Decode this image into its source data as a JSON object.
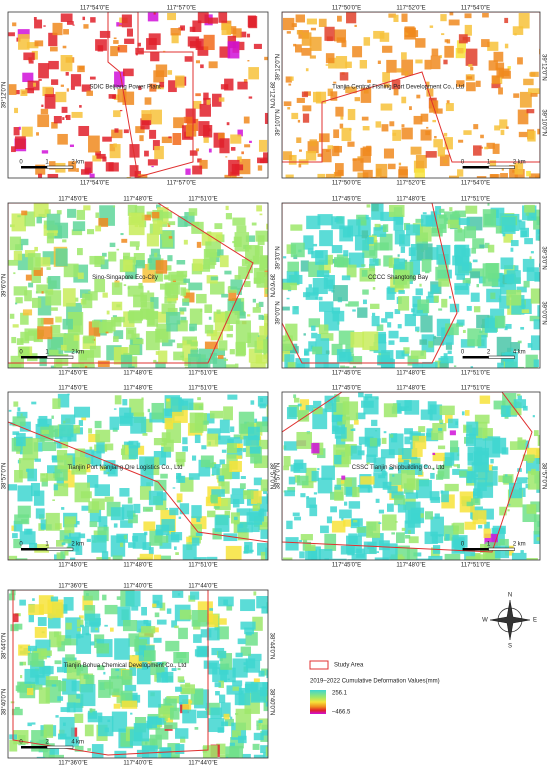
{
  "panels": [
    {
      "x_labels": [
        "117°54'0\"E",
        "117°57'0\"E"
      ],
      "y_labels": [
        "39°12'0\"N"
      ],
      "place": "SDIC Beijiang Power Plant",
      "scale": [
        "0",
        "1",
        "2",
        "km"
      ]
    },
    {
      "x_labels": [
        "117°50'0\"E",
        "117°52'0\"E",
        "117°54'0\"E"
      ],
      "y_labels": [
        "39°12'0\"N",
        "39°10'0\"N"
      ],
      "place": "Tianjin Central Fishing Port Development Co., Ltd",
      "scale": [
        "0",
        "1",
        "2",
        "km"
      ]
    },
    {
      "x_labels": [
        "117°45'0\"E",
        "117°48'0\"E",
        "117°51'0\"E"
      ],
      "y_labels": [
        "39°6'0\"N"
      ],
      "place": "Sino-Singapore Eco-City",
      "scale": [
        "0",
        "1",
        "2",
        "km"
      ]
    },
    {
      "x_labels": [
        "117°45'0\"E",
        "117°48'0\"E",
        "117°51'0\"E"
      ],
      "y_labels": [
        "39°3'0\"N",
        "39°0'0\"N"
      ],
      "place": "CCCC Shangtong Bay",
      "scale": [
        "0",
        "2",
        "4",
        "km"
      ]
    },
    {
      "x_labels": [
        "117°45'0\"E",
        "117°48'0\"E",
        "117°51'0\"E"
      ],
      "y_labels": [
        "38°57'0\"N"
      ],
      "place": "Tianjin Port Nanjiang Ore Logistics Co., Ltd",
      "scale": [
        "0",
        "1",
        "2",
        "km"
      ]
    },
    {
      "x_labels": [
        "117°45'0\"E",
        "117°48'0\"E",
        "117°51'0\"E"
      ],
      "y_labels": [
        "38°57'0\"N"
      ],
      "place": "CSSC Tianjin Shipbuilding Co., Ltd",
      "scale": [
        "0",
        "1",
        "2",
        "km"
      ]
    },
    {
      "x_labels": [
        "117°36'0\"E",
        "117°40'0\"E",
        "117°44'0\"E"
      ],
      "y_labels": [
        "38°44'0\"N",
        "38°40'0\"N"
      ],
      "place": "Tianjin Bohua Chemical Development Co., Ltd",
      "scale": [
        "0",
        "2",
        "4",
        "km"
      ]
    }
  ],
  "compass": {
    "n": "N",
    "s": "S",
    "e": "E",
    "w": "W"
  },
  "legend": {
    "study_area": "Study Area",
    "title": "2019–2022 Cumulative Deformation Values(mm)",
    "max": "256.1",
    "min": "–466.5"
  }
}
